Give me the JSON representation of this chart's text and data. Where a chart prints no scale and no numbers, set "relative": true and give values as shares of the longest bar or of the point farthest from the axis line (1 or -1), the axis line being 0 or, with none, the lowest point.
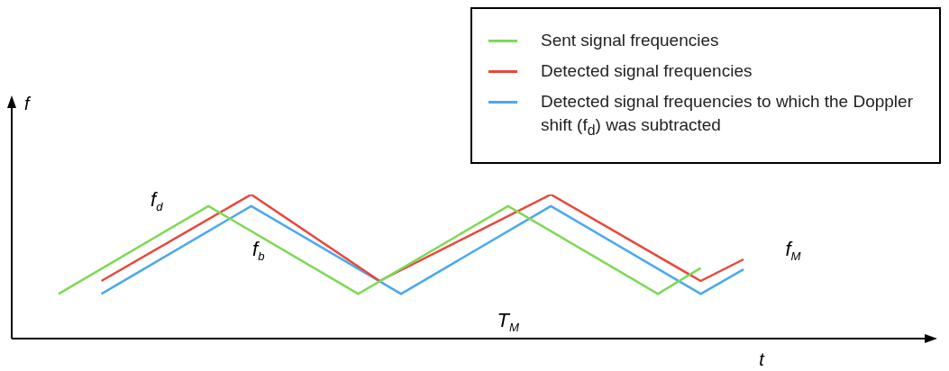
{
  "chart_data": {
    "type": "line",
    "relative": true,
    "xlabel": "t",
    "ylabel": "f",
    "grid": false,
    "legend": "top right",
    "marker": "none",
    "line_style": "solid",
    "categories": [
      null,
      null,
      null,
      null,
      null,
      null,
      null,
      null,
      null,
      null,
      null,
      null,
      null,
      null,
      null,
      null,
      null,
      null,
      null,
      null,
      null,
      null,
      null,
      null,
      null,
      null,
      null,
      null,
      null,
      null,
      null,
      null,
      null
    ],
    "series": [
      {
        "name": "Sent signal frequencies",
        "color": "#7ed957",
        "values": [
          0.31,
          null,
          null,
          null,
          null,
          null,
          null,
          0.92,
          null,
          null,
          null,
          null,
          null,
          null,
          0.31,
          null,
          null,
          null,
          null,
          null,
          null,
          0.92,
          null,
          null,
          null,
          null,
          null,
          null,
          0.31,
          null,
          0.49,
          null,
          null
        ]
      },
      {
        "name": "Detected signal frequencies",
        "color": "#e8473a",
        "values": [
          null,
          null,
          0.4,
          null,
          null,
          null,
          null,
          null,
          null,
          1,
          null,
          null,
          null,
          null,
          null,
          0.4,
          null,
          null,
          null,
          null,
          null,
          null,
          null,
          1,
          null,
          null,
          null,
          null,
          null,
          null,
          0.4,
          null,
          0.55
        ]
      },
      {
        "name": "Detected signal frequencies to which the Doppler shift (f$_{d}$) was subtracted",
        "color": "#4aa8f0",
        "values": [
          null,
          null,
          0.31,
          null,
          null,
          null,
          null,
          null,
          null,
          0.92,
          null,
          null,
          null,
          null,
          null,
          null,
          0.31,
          null,
          null,
          null,
          null,
          null,
          null,
          0.92,
          null,
          null,
          null,
          null,
          null,
          null,
          0.31,
          null,
          0.48
        ]
      }
    ],
    "annotations": [
      "f$_{d}$",
      "f$_{b}$",
      "f$_{M}$",
      "T$_{M}$"
    ]
  }
}
